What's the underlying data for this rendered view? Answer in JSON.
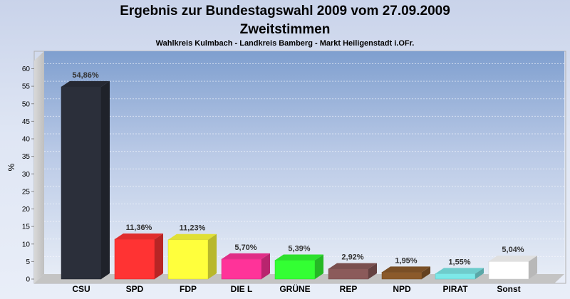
{
  "chart_data": {
    "type": "bar",
    "title": "Ergebnis zur Bundestagswahl 2009 vom 27.09.2009",
    "title_line2": "Zweitstimmen",
    "subtitle": "Wahlkreis Kulmbach - Landkreis Bamberg - Markt Heiligenstadt i.OFr.",
    "ylabel": "%",
    "xlabel": "",
    "ylim": [
      0,
      65
    ],
    "yticks": [
      0,
      5,
      10,
      15,
      20,
      25,
      30,
      35,
      40,
      45,
      50,
      55,
      60
    ],
    "grid": true,
    "categories": [
      "CSU",
      "SPD",
      "FDP",
      "DIE L",
      "GRÜNE",
      "REP",
      "NPD",
      "PIRAT",
      "Sonst"
    ],
    "values": [
      54.86,
      11.36,
      11.23,
      5.7,
      5.39,
      2.92,
      1.95,
      1.55,
      5.04
    ],
    "value_labels": [
      "54,86%",
      "11,36%",
      "11,23%",
      "5,70%",
      "5,39%",
      "2,92%",
      "1,95%",
      "1,55%",
      "5,04%"
    ],
    "colors": [
      "#2b2f3a",
      "#ff3333",
      "#ffff3c",
      "#ff3399",
      "#33ff33",
      "#8b5a5a",
      "#8b5a2b",
      "#7de8e8",
      "#ffffff"
    ]
  }
}
